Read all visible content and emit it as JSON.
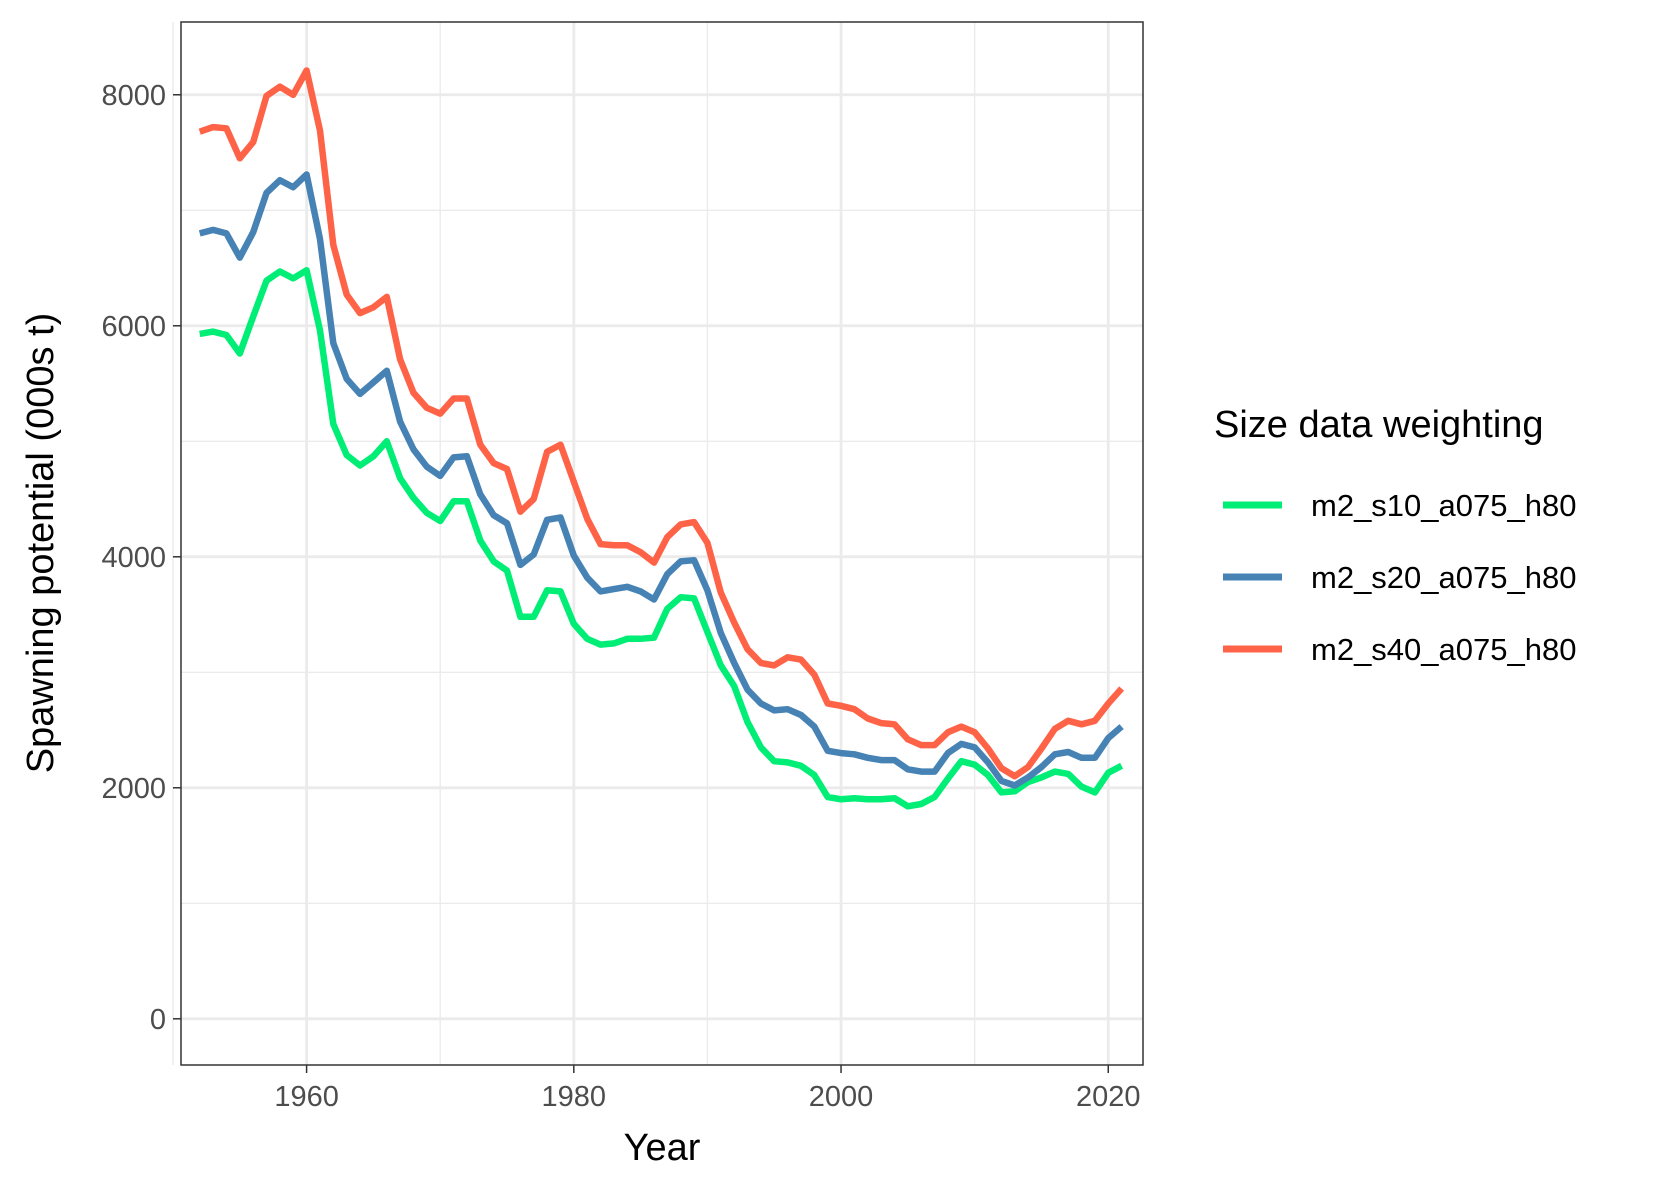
{
  "chart_data": {
    "type": "line",
    "xlabel": "Year",
    "ylabel": "Spawning potential (000s t)",
    "xlim": [
      1950.6,
      2022.6
    ],
    "ylim": [
      -400,
      8630
    ],
    "x_ticks": [
      1960,
      1980,
      2000,
      2020
    ],
    "x_tick_labels": [
      "1960",
      "1980",
      "2000",
      "2020"
    ],
    "y_ticks": [
      0,
      2000,
      4000,
      6000,
      8000
    ],
    "y_tick_labels": [
      "0",
      "2000",
      "4000",
      "6000",
      "8000"
    ],
    "grid": true,
    "legend": {
      "title": "Size data weighting",
      "position": "right"
    },
    "x": [
      1952,
      1953,
      1954,
      1955,
      1956,
      1957,
      1958,
      1959,
      1960,
      1961,
      1962,
      1963,
      1964,
      1965,
      1966,
      1967,
      1968,
      1969,
      1970,
      1971,
      1972,
      1973,
      1974,
      1975,
      1976,
      1977,
      1978,
      1979,
      1980,
      1981,
      1982,
      1983,
      1984,
      1985,
      1986,
      1987,
      1988,
      1989,
      1990,
      1991,
      1992,
      1993,
      1994,
      1995,
      1996,
      1997,
      1998,
      1999,
      2000,
      2001,
      2002,
      2003,
      2004,
      2005,
      2006,
      2007,
      2008,
      2009,
      2010,
      2011,
      2012,
      2013,
      2014,
      2015,
      2016,
      2017,
      2018,
      2019,
      2020,
      2021
    ],
    "series": [
      {
        "name": "m2_s10_a075_h80",
        "color": "#00EE76",
        "values": [
          5930,
          5950,
          5920,
          5760,
          6080,
          6390,
          6470,
          6410,
          6480,
          5960,
          5150,
          4880,
          4790,
          4870,
          5000,
          4680,
          4510,
          4380,
          4310,
          4480,
          4480,
          4140,
          3960,
          3880,
          3480,
          3480,
          3710,
          3700,
          3420,
          3290,
          3240,
          3250,
          3290,
          3290,
          3300,
          3550,
          3650,
          3640,
          3350,
          3060,
          2880,
          2570,
          2350,
          2230,
          2220,
          2190,
          2110,
          1920,
          1900,
          1910,
          1900,
          1900,
          1910,
          1840,
          1860,
          1920,
          2080,
          2230,
          2200,
          2110,
          1960,
          1970,
          2050,
          2090,
          2140,
          2120,
          2010,
          1960,
          2130,
          2190
        ]
      },
      {
        "name": "m2_s20_a075_h80",
        "color": "#4682B4",
        "values": [
          6800,
          6830,
          6800,
          6590,
          6810,
          7150,
          7260,
          7200,
          7310,
          6750,
          5850,
          5540,
          5410,
          5510,
          5610,
          5170,
          4930,
          4780,
          4700,
          4860,
          4870,
          4540,
          4360,
          4290,
          3930,
          4020,
          4320,
          4340,
          4010,
          3820,
          3700,
          3720,
          3740,
          3700,
          3630,
          3850,
          3960,
          3970,
          3710,
          3340,
          3080,
          2850,
          2730,
          2670,
          2680,
          2630,
          2530,
          2320,
          2300,
          2290,
          2260,
          2240,
          2240,
          2160,
          2140,
          2140,
          2300,
          2380,
          2350,
          2220,
          2060,
          2020,
          2090,
          2180,
          2290,
          2310,
          2260,
          2260,
          2430,
          2530
        ]
      },
      {
        "name": "m2_s40_a075_h80",
        "color": "#FF6347",
        "values": [
          7680,
          7720,
          7710,
          7450,
          7590,
          7990,
          8070,
          8000,
          8210,
          7690,
          6700,
          6270,
          6110,
          6160,
          6250,
          5710,
          5420,
          5290,
          5240,
          5370,
          5370,
          4970,
          4810,
          4760,
          4390,
          4500,
          4910,
          4970,
          4650,
          4330,
          4110,
          4100,
          4100,
          4040,
          3950,
          4170,
          4280,
          4300,
          4120,
          3690,
          3430,
          3200,
          3080,
          3060,
          3130,
          3110,
          2980,
          2730,
          2710,
          2680,
          2600,
          2560,
          2550,
          2420,
          2370,
          2370,
          2480,
          2530,
          2480,
          2340,
          2170,
          2100,
          2180,
          2340,
          2510,
          2580,
          2550,
          2580,
          2730,
          2860
        ]
      }
    ]
  }
}
